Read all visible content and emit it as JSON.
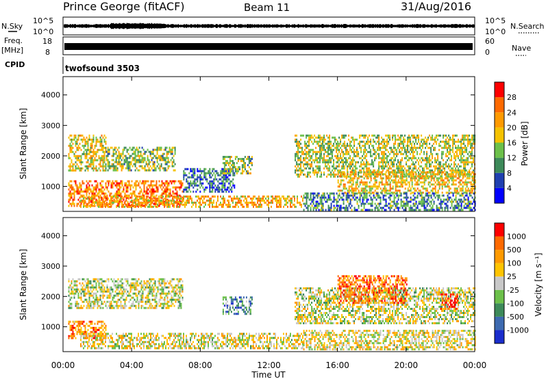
{
  "header": {
    "station": "Prince George (fitACF)",
    "beam": "Beam 11",
    "date": "31/Aug/2016"
  },
  "strips": {
    "nsky_label": "N.Sky",
    "nsky_ticks": [
      "10^5",
      "10^0"
    ],
    "nsearch_label": "N.Search",
    "nsearch_ticks": [
      "10^5",
      "10^0"
    ],
    "freq_label_line1": "Freq.",
    "freq_label_line2": "[MHz]",
    "freq_ticks": [
      "18",
      "8"
    ],
    "nave_label": "Nave",
    "nave_ticks": [
      "60",
      "0"
    ],
    "cpid_label": "CPID",
    "cpid_value": "twofsound 3503"
  },
  "colors": {
    "power": [
      "#0000ff",
      "#2040b0",
      "#3d8a5a",
      "#6cc04a",
      "#f5c200",
      "#ff9a00",
      "#ff6a00",
      "#ff0000"
    ],
    "velocity": [
      "#1a2dcc",
      "#3d6ab0",
      "#3d8a5a",
      "#6cc04a",
      "#c8c8c8",
      "#ffc400",
      "#ff9a00",
      "#ff6a00",
      "#ff0000"
    ]
  },
  "chart_data": [
    {
      "type": "heatmap",
      "panel": "power",
      "ylabel": "Slant Range [km]",
      "yticks": [
        "4000",
        "3000",
        "2000",
        "1000"
      ],
      "ylim": [
        180,
        4600
      ],
      "xlim": [
        0,
        24
      ],
      "colorbar_label": "Power [dB]",
      "colorbar_ticks": [
        "28",
        "24",
        "20",
        "16",
        "12",
        "8",
        "4"
      ],
      "bands": [
        {
          "t0": 0.3,
          "t1": 2.5,
          "r0": 1500,
          "r1": 2700,
          "level": 0.55
        },
        {
          "t0": 0.3,
          "t1": 7.0,
          "r0": 350,
          "r1": 1200,
          "level": 0.75
        },
        {
          "t0": 1.0,
          "t1": 14.0,
          "r0": 350,
          "r1": 700,
          "level": 0.65
        },
        {
          "t0": 2.5,
          "t1": 6.5,
          "r0": 1500,
          "r1": 2300,
          "level": 0.45
        },
        {
          "t0": 7.0,
          "t1": 10.0,
          "r0": 800,
          "r1": 1600,
          "level": 0.25
        },
        {
          "t0": 9.3,
          "t1": 11.0,
          "r0": 1400,
          "r1": 2000,
          "level": 0.45
        },
        {
          "t0": 13.5,
          "t1": 24.0,
          "r0": 1300,
          "r1": 2700,
          "level": 0.5
        },
        {
          "t0": 16.0,
          "t1": 24.0,
          "r0": 800,
          "r1": 1500,
          "level": 0.6
        },
        {
          "t0": 14.0,
          "t1": 24.0,
          "r0": 250,
          "r1": 800,
          "level": 0.3
        }
      ]
    },
    {
      "type": "heatmap",
      "panel": "velocity",
      "xlabel": "Time UT",
      "ylabel": "Slant Range [km]",
      "yticks": [
        "4000",
        "3000",
        "2000",
        "1000"
      ],
      "ylim": [
        180,
        4600
      ],
      "xlim": [
        0,
        24
      ],
      "xticks": [
        "00:00",
        "04:00",
        "08:00",
        "12:00",
        "16:00",
        "20:00",
        "00:00"
      ],
      "colorbar_label": "Velocity [m s⁻¹]",
      "colorbar_ticks": [
        "1000",
        "500",
        "100",
        "25",
        "-25",
        "-100",
        "-500",
        "-1000"
      ],
      "bands": [
        {
          "t0": 0.3,
          "t1": 7.0,
          "r0": 1600,
          "r1": 2600,
          "level": 0.5
        },
        {
          "t0": 0.3,
          "t1": 2.5,
          "r0": 600,
          "r1": 1200,
          "level": 0.75
        },
        {
          "t0": 1.0,
          "t1": 14.0,
          "r0": 300,
          "r1": 800,
          "level": 0.55
        },
        {
          "t0": 9.3,
          "t1": 11.0,
          "r0": 1400,
          "r1": 2000,
          "level": 0.3
        },
        {
          "t0": 13.5,
          "t1": 24.0,
          "r0": 1100,
          "r1": 2300,
          "level": 0.5
        },
        {
          "t0": 16.0,
          "t1": 20.0,
          "r0": 1800,
          "r1": 2700,
          "level": 0.8
        },
        {
          "t0": 22.0,
          "t1": 23.0,
          "r0": 1600,
          "r1": 2100,
          "level": 0.95
        },
        {
          "t0": 14.0,
          "t1": 24.0,
          "r0": 250,
          "r1": 900,
          "level": 0.55
        }
      ]
    }
  ]
}
